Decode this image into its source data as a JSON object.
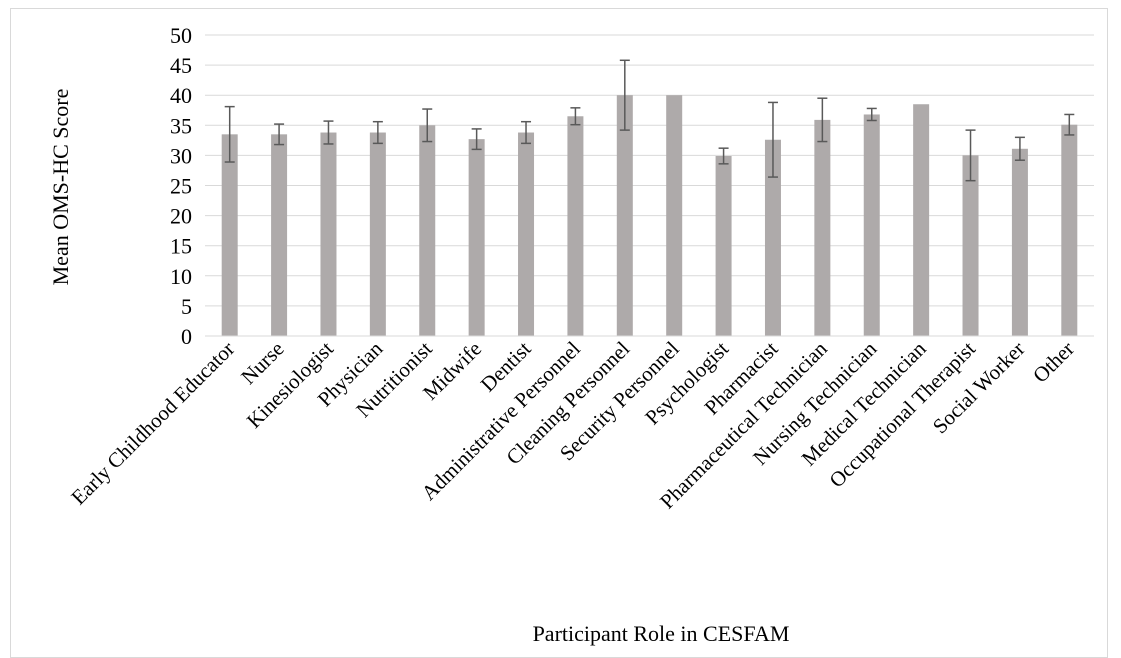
{
  "chart_data": {
    "type": "bar",
    "title": "",
    "xlabel": "Participant Role in CESFAM",
    "ylabel": "Mean OMS-HC Score",
    "ylim": [
      0,
      50
    ],
    "yticks": [
      0,
      5,
      10,
      15,
      20,
      25,
      30,
      35,
      40,
      45,
      50
    ],
    "grid": true,
    "legend": "none",
    "bar_color": "#aeaaaa",
    "error_bar_color": "#595959",
    "categories": [
      "Early Childhood Educator",
      "Nurse",
      "Kinesiologist",
      "Physician",
      "Nutritionist",
      "Midwife",
      "Dentist",
      "Administrative Personnel",
      "Cleaning Personnel",
      "Security Personnel",
      "Psychologist",
      "Pharmacist",
      "Pharmaceutical Technician",
      "Nursing Technician",
      "Medical Technician",
      "Occupational Therapist",
      "Social Worker",
      "Other"
    ],
    "values": [
      33.5,
      33.5,
      33.8,
      33.8,
      35.0,
      32.7,
      33.8,
      36.5,
      40.0,
      40.0,
      29.9,
      32.6,
      35.9,
      36.8,
      38.5,
      30.0,
      31.1,
      35.1
    ],
    "error": [
      4.6,
      1.7,
      1.9,
      1.8,
      2.7,
      1.7,
      1.8,
      1.4,
      5.8,
      0,
      1.3,
      6.2,
      3.6,
      1.0,
      0,
      4.2,
      1.9,
      1.7
    ]
  }
}
